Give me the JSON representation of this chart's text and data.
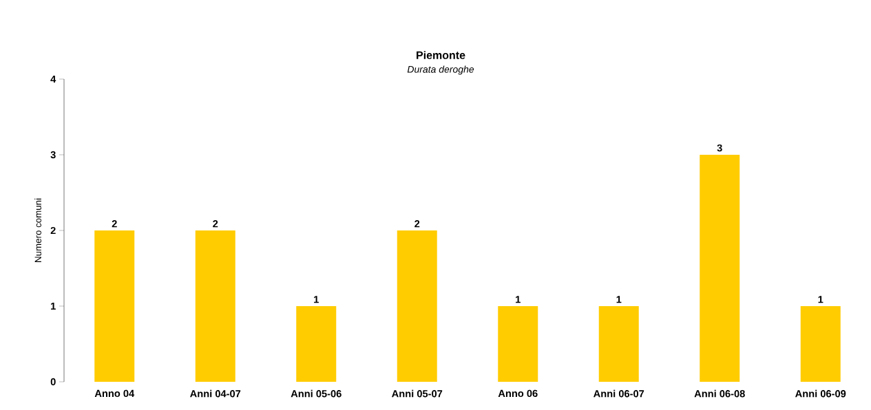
{
  "chart_data": {
    "type": "bar",
    "title": "Piemonte",
    "subtitle": "*Durata deroghe*",
    "ylabel": "Numero comuni",
    "categories": [
      "Anno 04",
      "Anni 04-07",
      "Anni 05-06",
      "Anni 05-07",
      "Anno 06",
      "Anni 06-07",
      "Anni 06-08",
      "Anni 06-09"
    ],
    "values": [
      2,
      2,
      1,
      2,
      1,
      1,
      3,
      1
    ],
    "color": "#ffcc00",
    "ylim": [
      0,
      4
    ],
    "yticks": [
      0,
      1,
      2,
      3,
      4
    ],
    "grid": false,
    "data_labels": true
  }
}
